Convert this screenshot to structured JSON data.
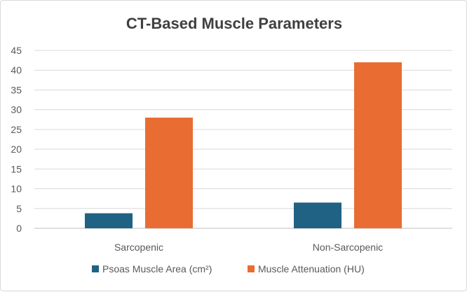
{
  "chart_data": {
    "type": "bar",
    "title": "CT-Based Muscle Parameters",
    "categories": [
      "Sarcopenic",
      "Non-Sarcopenic"
    ],
    "series": [
      {
        "name": "Psoas Muscle Area (cm²)",
        "values": [
          3.8,
          6.5
        ],
        "color": "#1f6283"
      },
      {
        "name": "Muscle Attenuation (HU)",
        "values": [
          28,
          42
        ],
        "color": "#e96d33"
      }
    ],
    "y_ticks": [
      "0",
      "5",
      "10",
      "15",
      "20",
      "25",
      "30",
      "35",
      "40",
      "45"
    ],
    "ylim": [
      0,
      45
    ],
    "grid": true,
    "legend_position": "bottom"
  }
}
